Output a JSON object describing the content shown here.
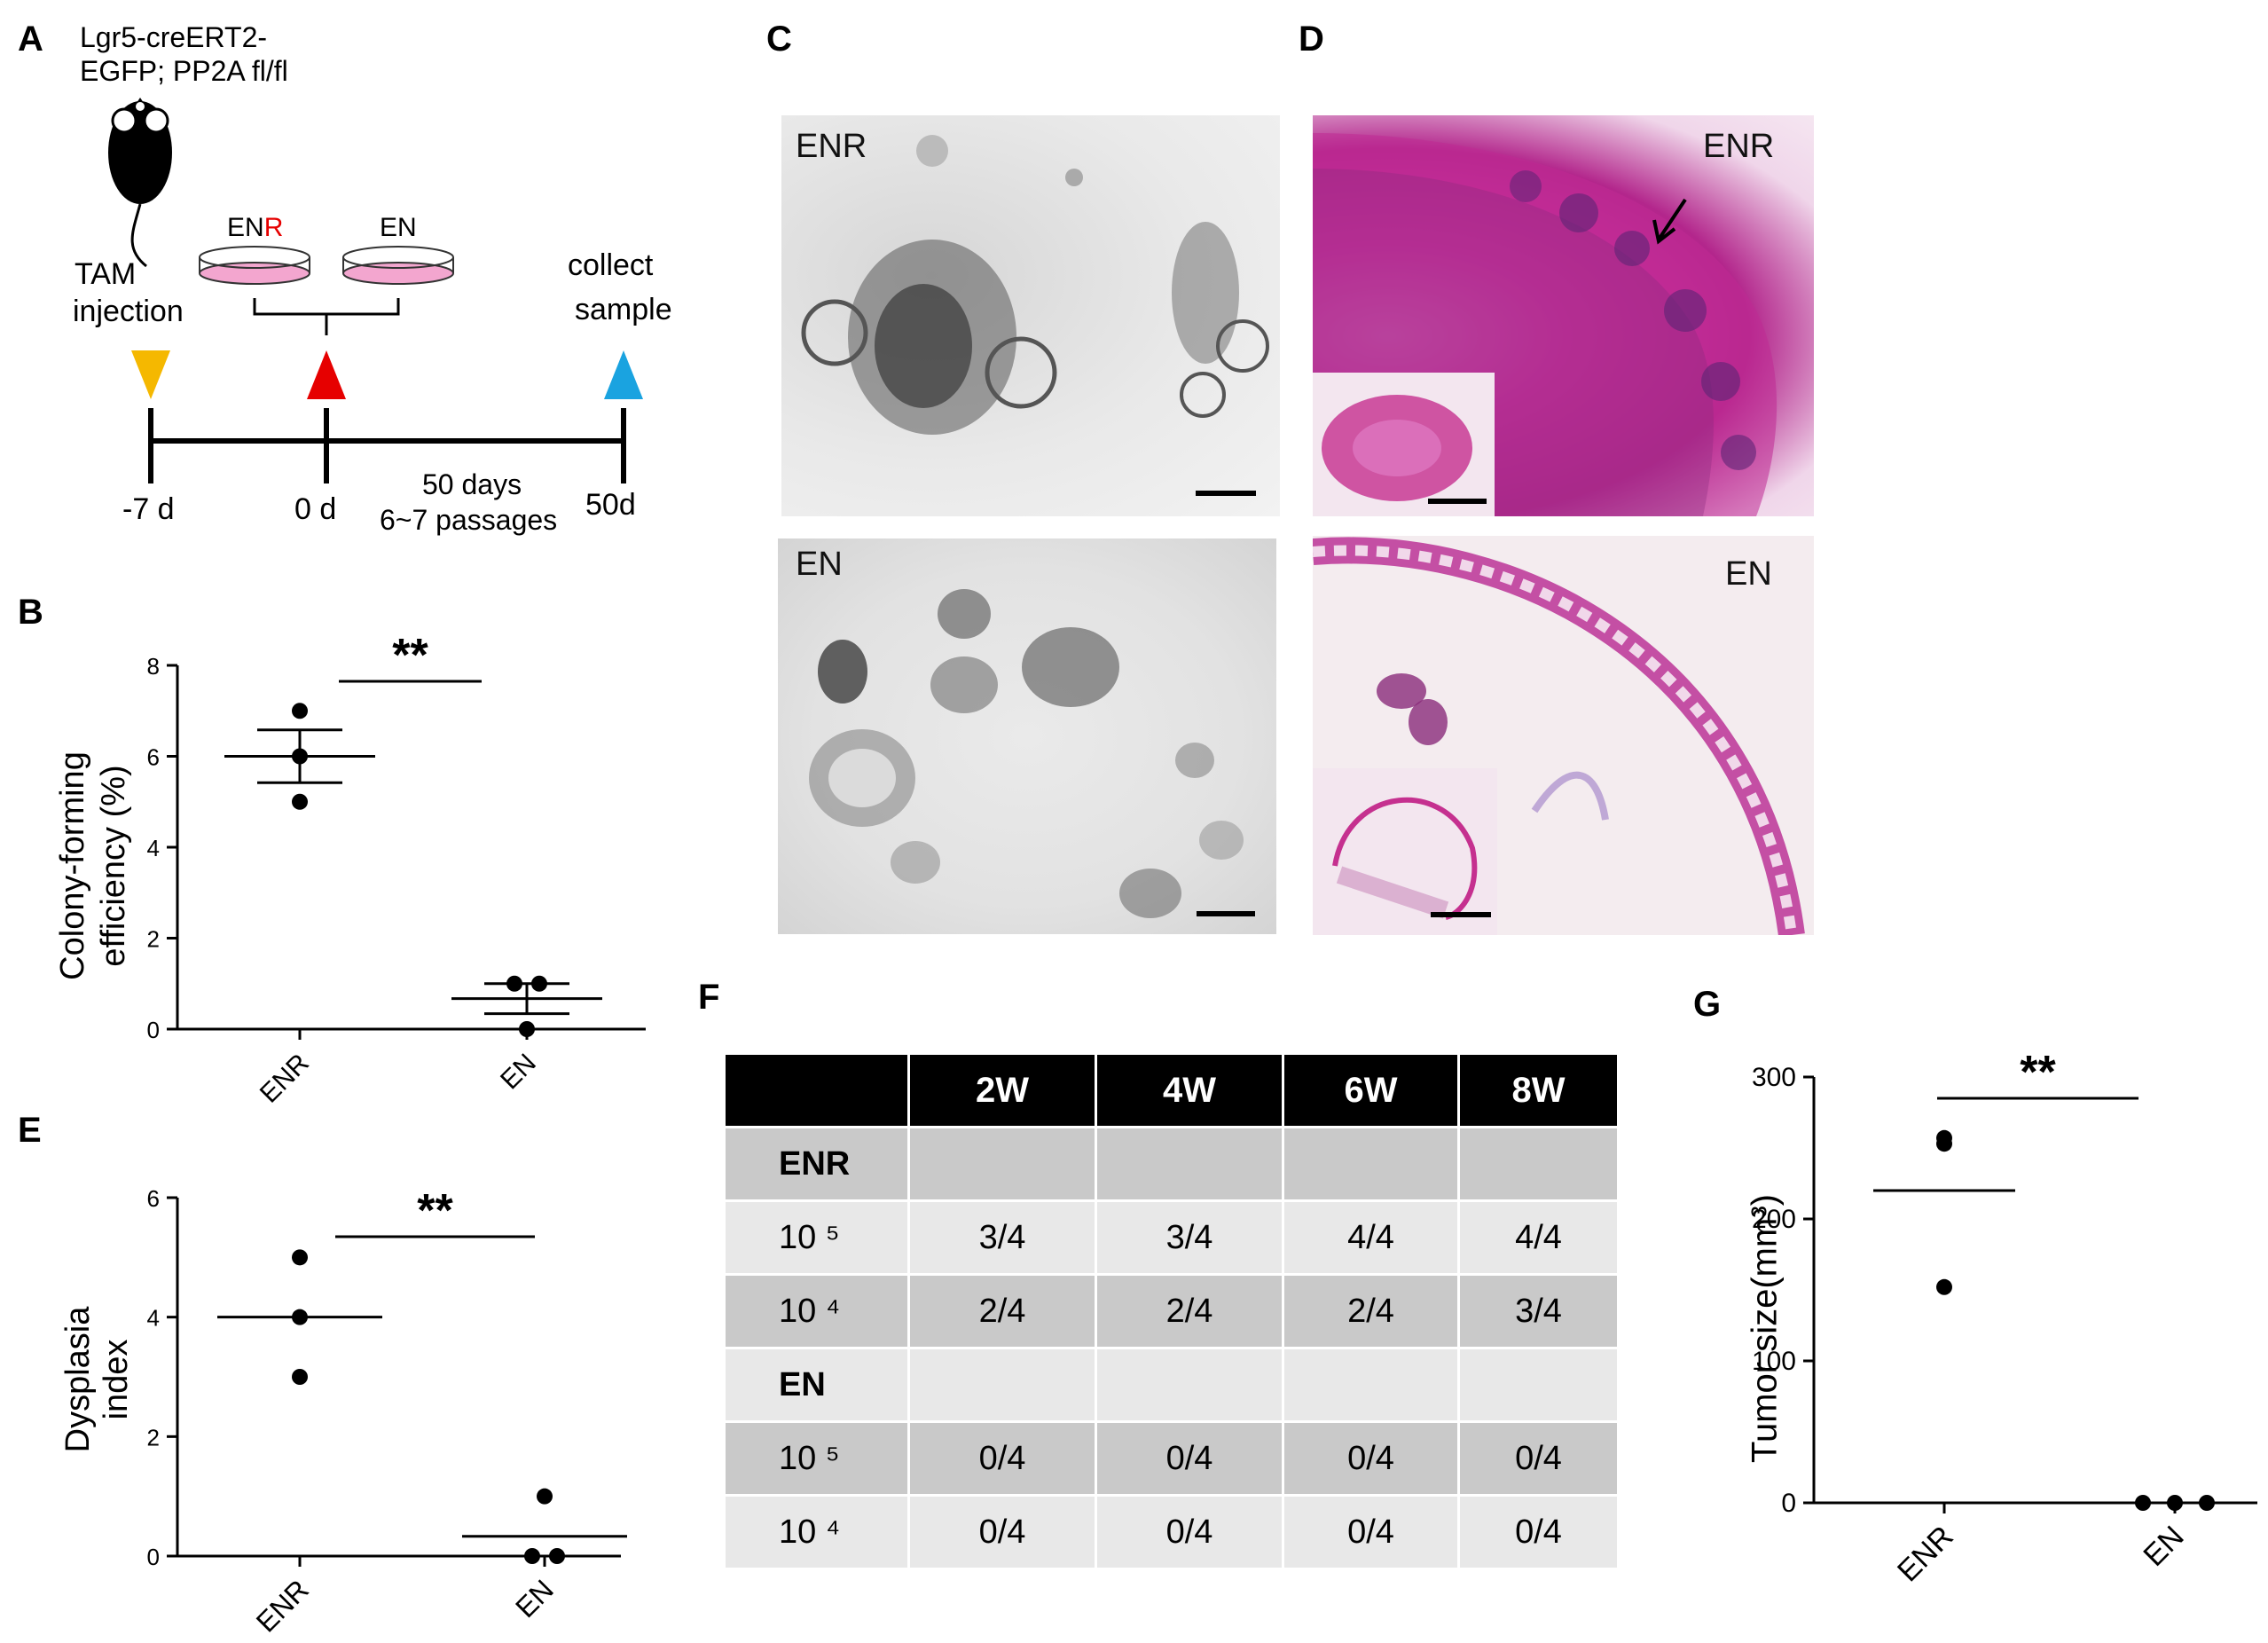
{
  "panels": {
    "A": "A",
    "B": "B",
    "C": "C",
    "D": "D",
    "E": "E",
    "F": "F",
    "G": "G"
  },
  "panel_a": {
    "genotype_line1": "Lgr5-creERT2-",
    "genotype_line2": "EGFP; PP2A fl/fl",
    "tam_line1": "TAM",
    "tam_line2": "injection",
    "dish1_label_prefix": "EN",
    "dish1_label_suffix": "R",
    "dish2_label": "EN",
    "collect_line1": "collect",
    "collect_line2": "sample",
    "tick_minus7": "-7 d",
    "tick_0": "0 d",
    "tick_50": "50d",
    "duration_line1": "50 days",
    "duration_line2": "6~7 passages",
    "colors": {
      "tam": "#f5b800",
      "start": "#e60000",
      "collect": "#1aa3e0",
      "red_text": "#e60000",
      "dish": "#f3a6cf"
    }
  },
  "panel_c": {
    "top_label": "ENR",
    "bottom_label": "EN"
  },
  "panel_d": {
    "top_label": "ENR",
    "bottom_label": "EN",
    "arrow_icon": "arrow"
  },
  "chart_data": [
    {
      "panel": "B",
      "type": "scatter",
      "ylabel_line1": "Colony-forming",
      "ylabel_line2": "efficiency (%)",
      "categories": [
        "ENR",
        "EN"
      ],
      "ylim": [
        0,
        8
      ],
      "yticks": [
        "0",
        "2",
        "4",
        "6",
        "8"
      ],
      "points": [
        [
          7,
          6,
          5
        ],
        [
          1,
          1,
          0
        ]
      ],
      "means": [
        6.0,
        0.67
      ],
      "sem": [
        0.58,
        0.33
      ],
      "significance": "**"
    },
    {
      "panel": "E",
      "type": "scatter",
      "ylabel": "Dysplasia index",
      "categories": [
        "ENR",
        "EN"
      ],
      "ylim": [
        0,
        6
      ],
      "yticks": [
        "0",
        "2",
        "4",
        "6"
      ],
      "points": [
        [
          5,
          4,
          3
        ],
        [
          1,
          0,
          0
        ]
      ],
      "means": [
        4.0,
        0.33
      ],
      "significance": "**"
    },
    {
      "panel": "F",
      "type": "table",
      "columns": [
        "",
        "2W",
        "4W",
        "6W",
        "8W"
      ],
      "rows": [
        {
          "label": "ENR",
          "group": true,
          "cells": [
            "",
            "",
            "",
            ""
          ]
        },
        {
          "label": "10 ⁵",
          "cells": [
            "3/4",
            "3/4",
            "4/4",
            "4/4"
          ]
        },
        {
          "label": "10 ⁴",
          "cells": [
            "2/4",
            "2/4",
            "2/4",
            "3/4"
          ]
        },
        {
          "label": "EN",
          "group": true,
          "cells": [
            "",
            "",
            "",
            ""
          ]
        },
        {
          "label": "10 ⁵",
          "cells": [
            "0/4",
            "0/4",
            "0/4",
            "0/4"
          ]
        },
        {
          "label": "10 ⁴",
          "cells": [
            "0/4",
            "0/4",
            "0/4",
            "0/4"
          ]
        }
      ]
    },
    {
      "panel": "G",
      "type": "scatter",
      "ylabel": "Tumor size(mm³)",
      "categories": [
        "ENR",
        "EN"
      ],
      "ylim": [
        0,
        300
      ],
      "yticks": [
        "0",
        "100",
        "200",
        "300"
      ],
      "points": [
        [
          257,
          253,
          152
        ],
        [
          0,
          0,
          0
        ]
      ],
      "means": [
        220,
        0
      ],
      "significance": "**"
    }
  ]
}
